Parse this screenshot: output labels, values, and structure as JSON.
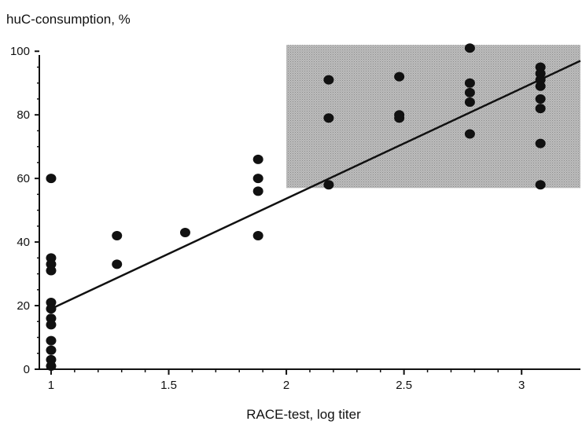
{
  "chart_data": {
    "type": "scatter",
    "title": "",
    "ylabel": "huC-consumption, %",
    "xlabel": "RACE-test, log titer",
    "xlim": [
      0.95,
      3.25
    ],
    "ylim": [
      0,
      105
    ],
    "x_ticks": [
      1,
      1.5,
      2,
      2.5,
      3
    ],
    "x_tick_labels": [
      "1",
      "1.5",
      "2",
      "2.5",
      "3"
    ],
    "y_ticks": [
      0,
      20,
      40,
      60,
      80,
      100
    ],
    "y_tick_labels": [
      "0",
      "20",
      "40",
      "60",
      "80",
      "100"
    ],
    "grid": false,
    "colors": {
      "points": "#111111",
      "line": "#111111",
      "shade": "#bdbdbd"
    },
    "shaded_region": {
      "x": [
        2.0,
        3.25
      ],
      "y": [
        57,
        102
      ]
    },
    "regression_line": {
      "x": [
        1.0,
        3.25
      ],
      "y": [
        19,
        97
      ]
    },
    "points": [
      {
        "x": 1.0,
        "y": 60
      },
      {
        "x": 1.0,
        "y": 35
      },
      {
        "x": 1.0,
        "y": 33
      },
      {
        "x": 1.0,
        "y": 31
      },
      {
        "x": 1.0,
        "y": 21
      },
      {
        "x": 1.0,
        "y": 19
      },
      {
        "x": 1.0,
        "y": 16
      },
      {
        "x": 1.0,
        "y": 14
      },
      {
        "x": 1.0,
        "y": 9
      },
      {
        "x": 1.0,
        "y": 6
      },
      {
        "x": 1.0,
        "y": 3
      },
      {
        "x": 1.0,
        "y": 1
      },
      {
        "x": 1.28,
        "y": 42
      },
      {
        "x": 1.28,
        "y": 33
      },
      {
        "x": 1.57,
        "y": 43
      },
      {
        "x": 1.88,
        "y": 66
      },
      {
        "x": 1.88,
        "y": 60
      },
      {
        "x": 1.88,
        "y": 56
      },
      {
        "x": 1.88,
        "y": 42
      },
      {
        "x": 2.18,
        "y": 91
      },
      {
        "x": 2.18,
        "y": 79
      },
      {
        "x": 2.18,
        "y": 58
      },
      {
        "x": 2.48,
        "y": 92
      },
      {
        "x": 2.48,
        "y": 80
      },
      {
        "x": 2.48,
        "y": 79
      },
      {
        "x": 2.78,
        "y": 101
      },
      {
        "x": 2.78,
        "y": 90
      },
      {
        "x": 2.78,
        "y": 87
      },
      {
        "x": 2.78,
        "y": 84
      },
      {
        "x": 2.78,
        "y": 74
      },
      {
        "x": 3.08,
        "y": 95
      },
      {
        "x": 3.08,
        "y": 93
      },
      {
        "x": 3.08,
        "y": 91
      },
      {
        "x": 3.08,
        "y": 89
      },
      {
        "x": 3.08,
        "y": 85
      },
      {
        "x": 3.08,
        "y": 82
      },
      {
        "x": 3.08,
        "y": 71
      },
      {
        "x": 3.08,
        "y": 58
      }
    ]
  }
}
